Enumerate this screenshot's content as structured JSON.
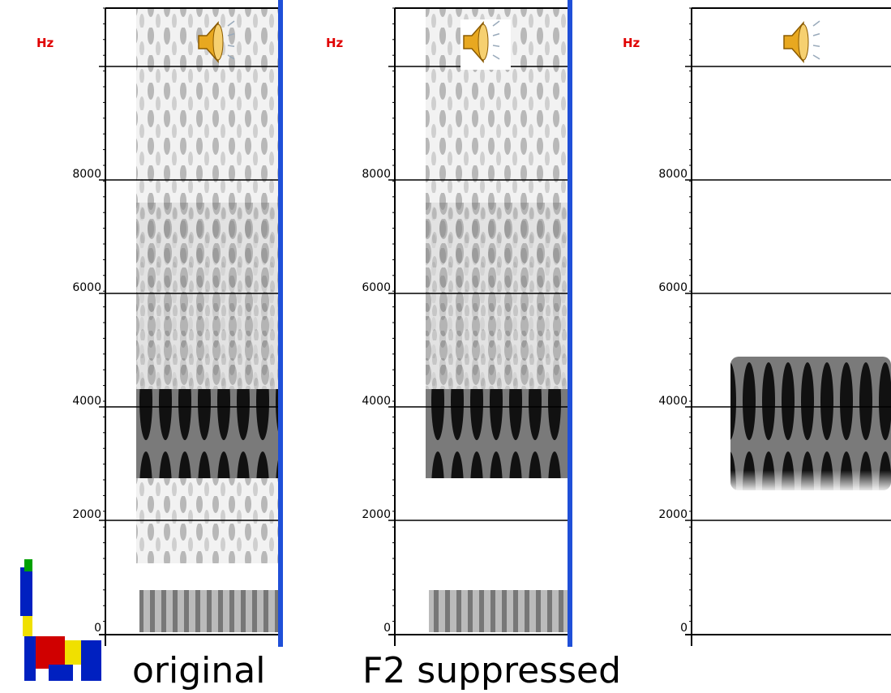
{
  "panels": [
    {
      "unit": "Hz",
      "ticks": [
        8000,
        6000,
        4000,
        2000,
        0
      ],
      "caption": "original"
    },
    {
      "unit": "Hz",
      "ticks": [
        8000,
        6000,
        4000,
        2000,
        0
      ],
      "caption": "F2 suppressed"
    },
    {
      "unit": "Hz",
      "ticks": [
        8000,
        6000,
        4000,
        2000,
        0
      ]
    }
  ]
}
